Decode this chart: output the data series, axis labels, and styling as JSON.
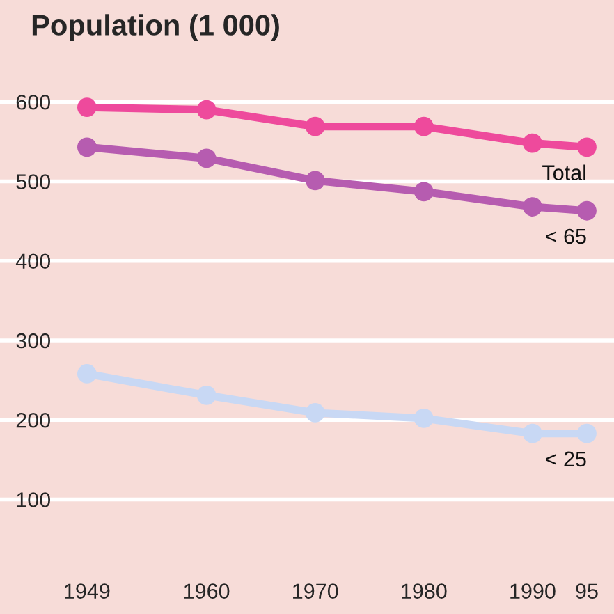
{
  "chart_data": {
    "type": "line",
    "title": "Population (1 000)",
    "x": [
      1949,
      1960,
      1970,
      1980,
      1990,
      1995
    ],
    "series": [
      {
        "name": "Total",
        "color": "#ee4a9c",
        "values": [
          593,
          590,
          569,
          569,
          548,
          543
        ]
      },
      {
        "name": "< 65",
        "color": "#b65cb0",
        "values": [
          543,
          529,
          501,
          487,
          468,
          463
        ]
      },
      {
        "name": "< 25",
        "color": "#c8d8f4",
        "values": [
          258,
          231,
          209,
          202,
          183,
          183
        ]
      }
    ],
    "xlim": [
      1941,
      1997.5
    ],
    "ylim": [
      -44,
      728
    ],
    "xticks": [
      1949,
      1960,
      1970,
      1980,
      {
        "value": 1990,
        "label": "1990"
      },
      {
        "value": 1995,
        "label": "95"
      }
    ],
    "yticks": [
      100,
      200,
      300,
      400,
      500,
      600
    ],
    "grid": "y",
    "legend": false,
    "marker": "circle",
    "line_style": "solid"
  }
}
